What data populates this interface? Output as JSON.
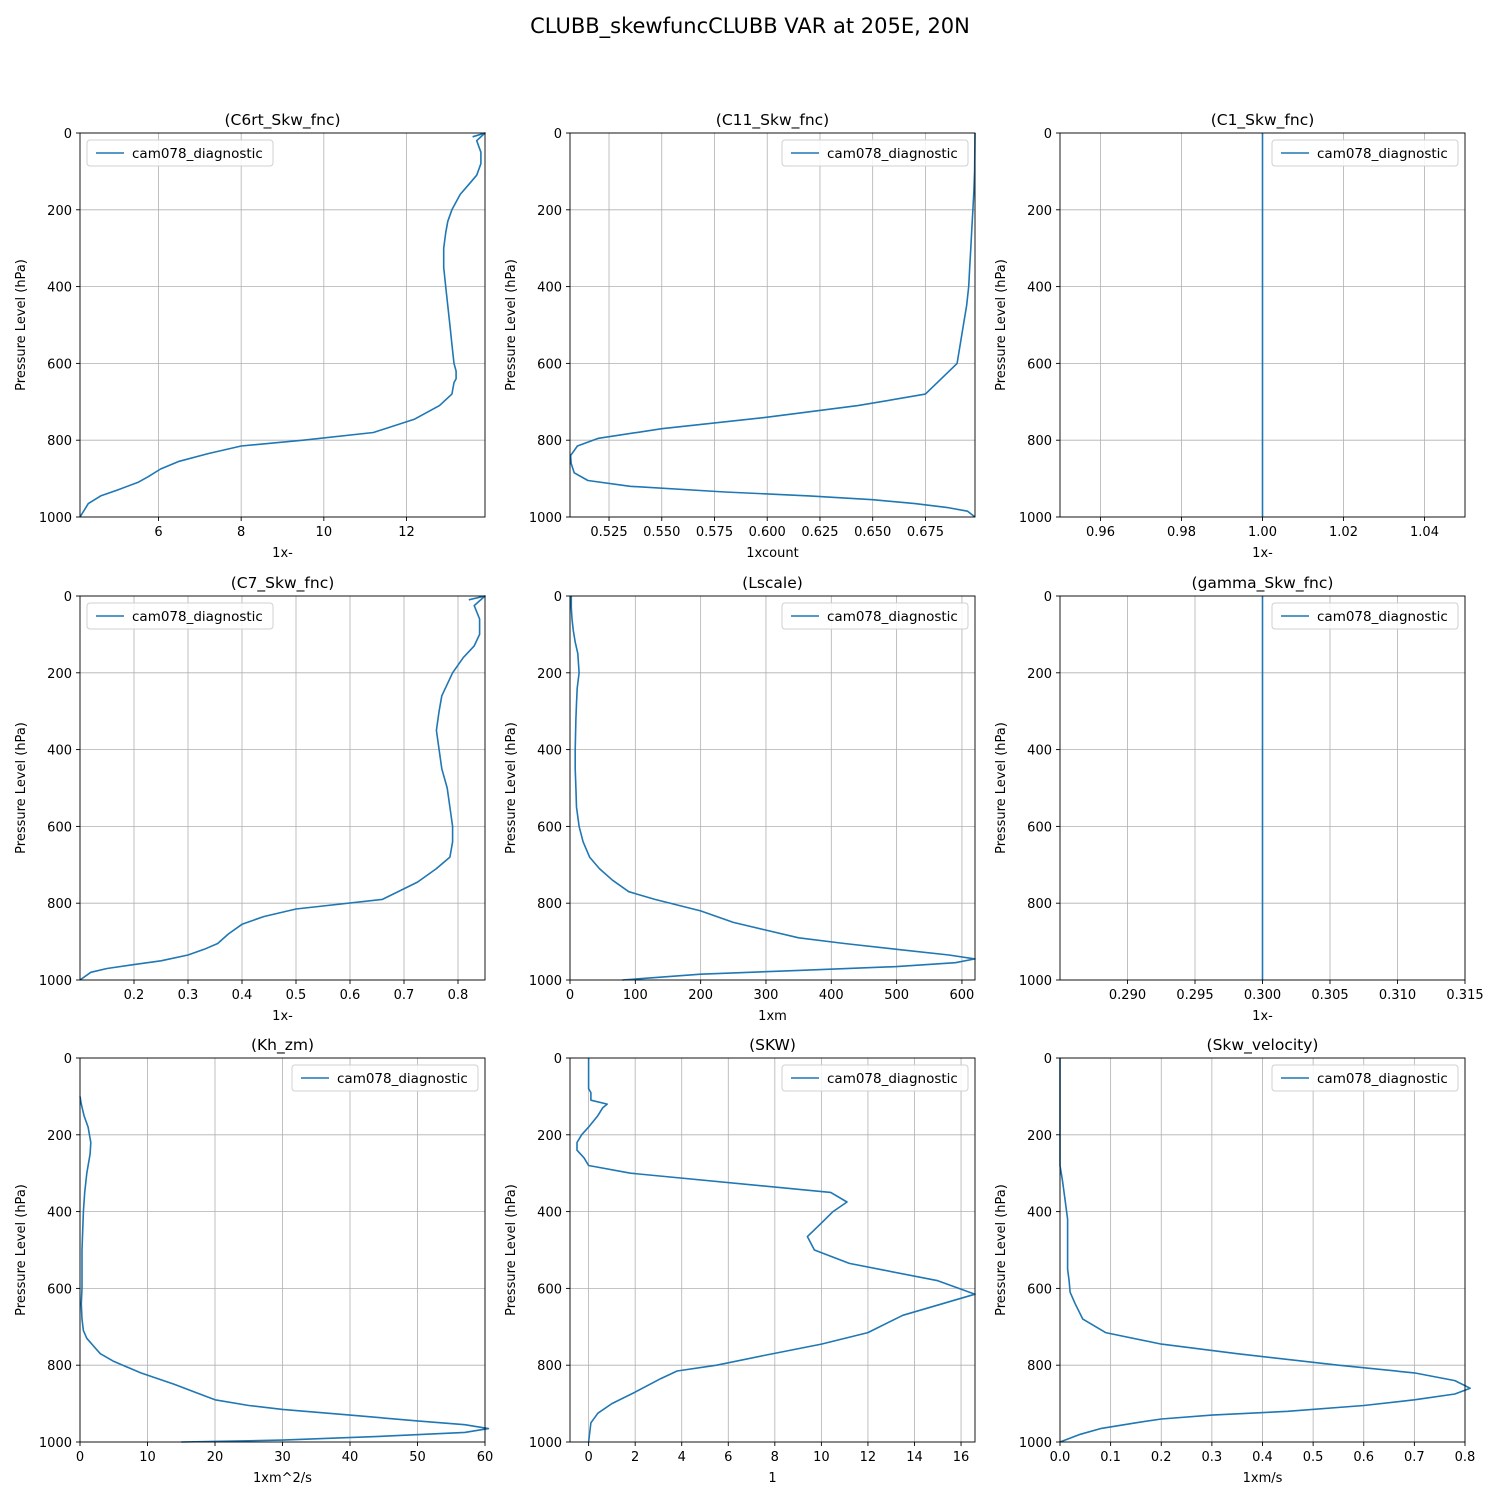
{
  "figure": {
    "suptitle": "CLUBB_skewfuncCLUBB VAR at 205E, 20N",
    "line_color": "#1f77b4",
    "grid_color": "#b0b0b0"
  },
  "chart_data": [
    {
      "type": "line",
      "title": "(C6rt_Skw_fnc)",
      "xlabel": "1x-",
      "ylabel": "Pressure Level (hPa)",
      "xlim": [
        4.1,
        13.9
      ],
      "ylim": [
        1000,
        0
      ],
      "y_inverted": true,
      "xticks": [
        6,
        8,
        10,
        12
      ],
      "xtick_labels": [
        "6",
        "8",
        "10",
        "12"
      ],
      "yticks": [
        0,
        200,
        400,
        600,
        800,
        1000
      ],
      "ytick_labels": [
        "0",
        "200",
        "400",
        "600",
        "800",
        "1000"
      ],
      "legend_loc": "upper left",
      "grid": true,
      "series": [
        {
          "name": "cam078_diagnostic",
          "x": [
            13.6,
            13.9,
            13.7,
            13.8,
            13.8,
            13.7,
            13.5,
            13.3,
            13.1,
            13.0,
            12.95,
            12.9,
            12.9,
            12.95,
            13.0,
            13.05,
            13.1,
            13.15,
            13.2,
            13.2,
            13.15,
            13.1,
            12.8,
            12.2,
            11.2,
            9.5,
            8.0,
            7.2,
            6.5,
            6.05,
            5.75,
            5.5,
            5.0,
            4.6,
            4.3,
            4.1
          ],
          "y": [
            10,
            0,
            20,
            50,
            80,
            110,
            135,
            160,
            200,
            230,
            260,
            300,
            350,
            400,
            450,
            500,
            550,
            600,
            620,
            640,
            650,
            680,
            710,
            745,
            780,
            800,
            815,
            835,
            855,
            875,
            895,
            910,
            930,
            945,
            965,
            1000
          ]
        }
      ]
    },
    {
      "type": "line",
      "title": "(C11_Skw_fnc)",
      "xlabel": "1xcount",
      "ylabel": "Pressure Level (hPa)",
      "xlim": [
        0.5065,
        0.6985
      ],
      "ylim": [
        1000,
        0
      ],
      "y_inverted": true,
      "xticks": [
        0.525,
        0.55,
        0.575,
        0.6,
        0.625,
        0.65,
        0.675
      ],
      "xtick_labels": [
        "0.525",
        "0.550",
        "0.575",
        "0.600",
        "0.625",
        "0.650",
        "0.675"
      ],
      "yticks": [
        0,
        200,
        400,
        600,
        800,
        1000
      ],
      "ytick_labels": [
        "0",
        "200",
        "400",
        "600",
        "800",
        "1000"
      ],
      "legend_loc": "upper right",
      "grid": true,
      "series": [
        {
          "name": "cam078_diagnostic",
          "x": [
            0.6985,
            0.6984,
            0.6983,
            0.698,
            0.6975,
            0.697,
            0.6965,
            0.696,
            0.6955,
            0.6945,
            0.693,
            0.69,
            0.675,
            0.643,
            0.6,
            0.55,
            0.52,
            0.51,
            0.5068,
            0.507,
            0.5085,
            0.515,
            0.535,
            0.58,
            0.62,
            0.65,
            0.67,
            0.685,
            0.695,
            0.6985
          ],
          "y": [
            0,
            50,
            100,
            150,
            200,
            250,
            300,
            350,
            400,
            450,
            500,
            600,
            680,
            710,
            740,
            770,
            795,
            815,
            840,
            860,
            885,
            905,
            920,
            935,
            945,
            955,
            965,
            975,
            985,
            1000
          ]
        }
      ]
    },
    {
      "type": "line",
      "title": "(C1_Skw_fnc)",
      "xlabel": "1x-",
      "ylabel": "Pressure Level (hPa)",
      "xlim": [
        0.95,
        1.05
      ],
      "ylim": [
        1000,
        0
      ],
      "y_inverted": true,
      "xticks": [
        0.96,
        0.98,
        1.0,
        1.02,
        1.04
      ],
      "xtick_labels": [
        "0.96",
        "0.98",
        "1.00",
        "1.02",
        "1.04"
      ],
      "yticks": [
        0,
        200,
        400,
        600,
        800,
        1000
      ],
      "ytick_labels": [
        "0",
        "200",
        "400",
        "600",
        "800",
        "1000"
      ],
      "legend_loc": "upper right",
      "grid": true,
      "series": [
        {
          "name": "cam078_diagnostic",
          "x": [
            1.0,
            1.0
          ],
          "y": [
            0,
            1000
          ]
        }
      ]
    },
    {
      "type": "line",
      "title": "(C7_Skw_fnc)",
      "xlabel": "1x-",
      "ylabel": "Pressure Level (hPa)",
      "xlim": [
        0.1,
        0.85
      ],
      "ylim": [
        1000,
        0
      ],
      "y_inverted": true,
      "xticks": [
        0.2,
        0.3,
        0.4,
        0.5,
        0.6,
        0.7,
        0.8
      ],
      "xtick_labels": [
        "0.2",
        "0.3",
        "0.4",
        "0.5",
        "0.6",
        "0.7",
        "0.8"
      ],
      "yticks": [
        0,
        200,
        400,
        600,
        800,
        1000
      ],
      "ytick_labels": [
        "0",
        "200",
        "400",
        "600",
        "800",
        "1000"
      ],
      "legend_loc": "upper left",
      "grid": true,
      "series": [
        {
          "name": "cam078_diagnostic",
          "x": [
            0.82,
            0.85,
            0.83,
            0.84,
            0.84,
            0.83,
            0.81,
            0.79,
            0.78,
            0.77,
            0.765,
            0.76,
            0.765,
            0.77,
            0.78,
            0.785,
            0.79,
            0.79,
            0.785,
            0.76,
            0.725,
            0.66,
            0.5,
            0.44,
            0.4,
            0.375,
            0.355,
            0.33,
            0.3,
            0.25,
            0.2,
            0.15,
            0.12,
            0.1
          ],
          "y": [
            10,
            0,
            25,
            60,
            100,
            130,
            160,
            200,
            230,
            260,
            300,
            350,
            400,
            450,
            500,
            550,
            600,
            640,
            680,
            710,
            745,
            790,
            815,
            835,
            855,
            880,
            905,
            920,
            935,
            950,
            960,
            970,
            980,
            1000
          ]
        }
      ]
    },
    {
      "type": "line",
      "title": "(Lscale)",
      "xlabel": "1xm",
      "ylabel": "Pressure Level (hPa)",
      "xlim": [
        0,
        620
      ],
      "ylim": [
        1000,
        0
      ],
      "y_inverted": true,
      "xticks": [
        0,
        100,
        200,
        300,
        400,
        500,
        600
      ],
      "xtick_labels": [
        "0",
        "100",
        "200",
        "300",
        "400",
        "500",
        "600"
      ],
      "yticks": [
        0,
        200,
        400,
        600,
        800,
        1000
      ],
      "ytick_labels": [
        "0",
        "200",
        "400",
        "600",
        "800",
        "1000"
      ],
      "legend_loc": "upper right",
      "grid": true,
      "series": [
        {
          "name": "cam078_diagnostic",
          "x": [
            2,
            2,
            3,
            5,
            8,
            12,
            14,
            11,
            10,
            9,
            8,
            8,
            9,
            10,
            14,
            20,
            30,
            45,
            65,
            90,
            130,
            200,
            250,
            300,
            350,
            420,
            500,
            580,
            620,
            590,
            500,
            350,
            200,
            120,
            80
          ],
          "y": [
            0,
            30,
            60,
            90,
            120,
            150,
            200,
            240,
            280,
            320,
            400,
            450,
            500,
            550,
            600,
            640,
            680,
            710,
            740,
            770,
            790,
            820,
            850,
            870,
            890,
            905,
            920,
            935,
            945,
            955,
            965,
            975,
            985,
            995,
            1000
          ]
        }
      ]
    },
    {
      "type": "line",
      "title": "(gamma_Skw_fnc)",
      "xlabel": "1x-",
      "ylabel": "Pressure Level (hPa)",
      "xlim": [
        0.285,
        0.315
      ],
      "ylim": [
        1000,
        0
      ],
      "y_inverted": true,
      "xticks": [
        0.29,
        0.295,
        0.3,
        0.305,
        0.31,
        0.315
      ],
      "xtick_labels": [
        "0.290",
        "0.295",
        "0.300",
        "0.305",
        "0.310",
        "0.315"
      ],
      "yticks": [
        0,
        200,
        400,
        600,
        800,
        1000
      ],
      "ytick_labels": [
        "0",
        "200",
        "400",
        "600",
        "800",
        "1000"
      ],
      "legend_loc": "upper right",
      "grid": true,
      "series": [
        {
          "name": "cam078_diagnostic",
          "x": [
            0.3,
            0.3
          ],
          "y": [
            0,
            1000
          ]
        }
      ]
    },
    {
      "type": "line",
      "title": "(Kh_zm)",
      "xlabel": "1xm^2/s",
      "ylabel": "Pressure Level (hPa)",
      "xlim": [
        0,
        60
      ],
      "ylim": [
        1000,
        0
      ],
      "y_inverted": true,
      "xticks": [
        0,
        10,
        20,
        30,
        40,
        50,
        60
      ],
      "xtick_labels": [
        "0",
        "10",
        "20",
        "30",
        "40",
        "50",
        "60"
      ],
      "yticks": [
        0,
        200,
        400,
        600,
        800,
        1000
      ],
      "ytick_labels": [
        "0",
        "200",
        "400",
        "600",
        "800",
        "1000"
      ],
      "legend_loc": "upper right",
      "grid": true,
      "series": [
        {
          "name": "cam078_diagnostic",
          "x": [
            0,
            0.2,
            0.6,
            1.2,
            1.6,
            1.5,
            1.0,
            0.7,
            0.5,
            0.4,
            0.3,
            0.3,
            0.3,
            0.2,
            0.3,
            0.5,
            1.0,
            2.0,
            3.0,
            5.0,
            9.0,
            14.0,
            17.0,
            20.0,
            25.0,
            30.0,
            40.0,
            50.0,
            57.0,
            60.5,
            57.0,
            45.0,
            30.0,
            15.0
          ],
          "y": [
            100,
            120,
            150,
            180,
            220,
            250,
            300,
            350,
            400,
            450,
            500,
            550,
            600,
            640,
            680,
            710,
            730,
            750,
            770,
            790,
            820,
            850,
            870,
            890,
            905,
            915,
            930,
            945,
            955,
            965,
            975,
            985,
            995,
            1000
          ]
        }
      ]
    },
    {
      "type": "line",
      "title": "(SKW)",
      "xlabel": "1",
      "ylabel": "Pressure Level (hPa)",
      "xlim": [
        -0.8,
        16.6
      ],
      "ylim": [
        1000,
        0
      ],
      "y_inverted": true,
      "xticks": [
        0,
        2,
        4,
        6,
        8,
        10,
        12,
        14,
        16
      ],
      "xtick_labels": [
        "0",
        "2",
        "4",
        "6",
        "8",
        "10",
        "12",
        "14",
        "16"
      ],
      "yticks": [
        0,
        200,
        400,
        600,
        800,
        1000
      ],
      "ytick_labels": [
        "0",
        "200",
        "400",
        "600",
        "800",
        "1000"
      ],
      "legend_loc": "upper right",
      "grid": true,
      "series": [
        {
          "name": "cam078_diagnostic",
          "x": [
            0,
            0,
            0.1,
            0.1,
            0.8,
            0.6,
            0.4,
            0,
            -0.3,
            -0.5,
            -0.5,
            -0.2,
            0,
            1.8,
            10.4,
            11.1,
            10.5,
            10.0,
            9.4,
            9.7,
            11.2,
            15.0,
            16.6,
            13.5,
            12.0,
            10.0,
            7.5,
            5.5,
            3.8,
            3.1,
            2.0,
            1.0,
            0.4,
            0.1,
            0
          ],
          "y": [
            0,
            80,
            90,
            110,
            120,
            130,
            150,
            180,
            200,
            220,
            240,
            260,
            280,
            300,
            350,
            375,
            400,
            430,
            465,
            500,
            535,
            580,
            615,
            670,
            715,
            745,
            775,
            800,
            815,
            835,
            870,
            900,
            925,
            950,
            1000
          ]
        }
      ]
    },
    {
      "type": "line",
      "title": "(Skw_velocity)",
      "xlabel": "1xm/s",
      "ylabel": "Pressure Level (hPa)",
      "xlim": [
        0.0,
        0.8
      ],
      "ylim": [
        1000,
        0
      ],
      "y_inverted": true,
      "xticks": [
        0.0,
        0.1,
        0.2,
        0.3,
        0.4,
        0.5,
        0.6,
        0.7,
        0.8
      ],
      "xtick_labels": [
        "0.0",
        "0.1",
        "0.2",
        "0.3",
        "0.4",
        "0.5",
        "0.6",
        "0.7",
        "0.8"
      ],
      "yticks": [
        0,
        200,
        400,
        600,
        800,
        1000
      ],
      "ytick_labels": [
        "0",
        "200",
        "400",
        "600",
        "800",
        "1000"
      ],
      "legend_loc": "upper right",
      "grid": true,
      "series": [
        {
          "name": "cam078_diagnostic",
          "x": [
            0,
            0,
            0.005,
            0.01,
            0.015,
            0.015,
            0.015,
            0.018,
            0.02,
            0.03,
            0.045,
            0.09,
            0.2,
            0.35,
            0.55,
            0.7,
            0.78,
            0.81,
            0.78,
            0.7,
            0.6,
            0.45,
            0.3,
            0.2,
            0.15,
            0.08,
            0.04,
            0
          ],
          "y": [
            0,
            280,
            320,
            370,
            420,
            500,
            550,
            580,
            610,
            640,
            680,
            715,
            745,
            770,
            800,
            820,
            840,
            860,
            875,
            890,
            905,
            920,
            930,
            940,
            950,
            965,
            980,
            1000
          ]
        }
      ]
    }
  ]
}
